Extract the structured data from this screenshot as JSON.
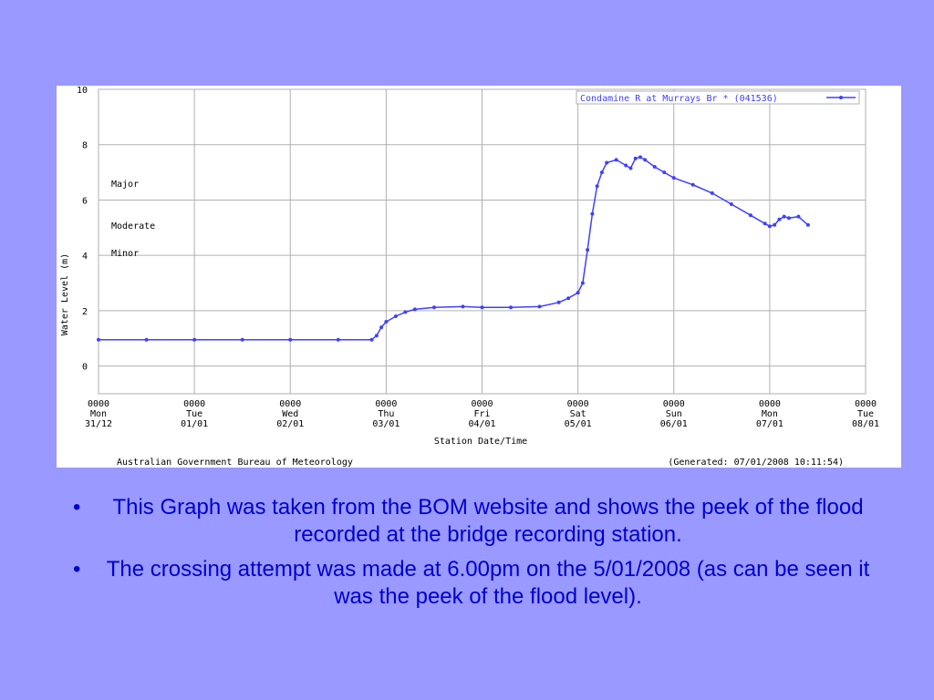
{
  "colors": {
    "background": "#9999ff",
    "panel": "#ffffff",
    "grid": "#b0b0b0",
    "series": "#4040ff",
    "text": "#000000",
    "bullet_text": "#0000cc"
  },
  "chart_data": {
    "type": "line",
    "ylabel": "Water Level (m)",
    "xlabel": "Station Date/Time",
    "ylim": [
      -1,
      10
    ],
    "y_ticks": [
      "10",
      "8",
      "6",
      "4",
      "2",
      "0"
    ],
    "y_tick_values": [
      10,
      8,
      6,
      4,
      2,
      0
    ],
    "x_ticks": [
      {
        "time": "0000",
        "day": "Mon",
        "date": "31/12"
      },
      {
        "time": "0000",
        "day": "Tue",
        "date": "01/01"
      },
      {
        "time": "0000",
        "day": "Wed",
        "date": "02/01"
      },
      {
        "time": "0000",
        "day": "Thu",
        "date": "03/01"
      },
      {
        "time": "0000",
        "day": "Fri",
        "date": "04/01"
      },
      {
        "time": "0000",
        "day": "Sat",
        "date": "05/01"
      },
      {
        "time": "0000",
        "day": "Sun",
        "date": "06/01"
      },
      {
        "time": "0000",
        "day": "Mon",
        "date": "07/01"
      },
      {
        "time": "0000",
        "day": "Tue",
        "date": "08/01"
      }
    ],
    "grid": true,
    "flood_levels": [
      {
        "label": "Major",
        "value": 6.6
      },
      {
        "label": "Moderate",
        "value": 5.1
      },
      {
        "label": "Minor",
        "value": 4.1
      }
    ],
    "legend_position": "top-right",
    "series": [
      {
        "name": "Condamine R at Murrays Br * (041536)",
        "x": [
          0,
          0.5,
          1,
          1.5,
          2,
          2.5,
          2.85,
          2.9,
          2.95,
          3.0,
          3.1,
          3.2,
          3.3,
          3.5,
          3.8,
          4.0,
          4.3,
          4.6,
          4.8,
          4.9,
          5.0,
          5.05,
          5.1,
          5.15,
          5.2,
          5.25,
          5.3,
          5.4,
          5.5,
          5.55,
          5.6,
          5.65,
          5.7,
          5.8,
          5.9,
          6.0,
          6.2,
          6.4,
          6.6,
          6.8,
          6.95,
          7.0,
          7.05,
          7.1,
          7.15,
          7.2,
          7.3,
          7.4
        ],
        "y": [
          0.95,
          0.95,
          0.95,
          0.95,
          0.95,
          0.95,
          0.95,
          1.1,
          1.4,
          1.6,
          1.8,
          1.95,
          2.05,
          2.12,
          2.15,
          2.12,
          2.12,
          2.15,
          2.3,
          2.45,
          2.65,
          3.0,
          4.2,
          5.5,
          6.5,
          7.0,
          7.35,
          7.45,
          7.25,
          7.15,
          7.5,
          7.55,
          7.45,
          7.2,
          7.0,
          6.8,
          6.55,
          6.25,
          5.85,
          5.45,
          5.15,
          5.05,
          5.1,
          5.3,
          5.4,
          5.35,
          5.4,
          5.1
        ]
      }
    ],
    "footer_left": "Australian Government Bureau of Meteorology",
    "footer_right": "(Generated: 07/01/2008 10:11:54)"
  },
  "bullets": [
    "This Graph was taken from the BOM website and shows the peek of the flood recorded at the bridge recording station.",
    "The crossing attempt was made at 6.00pm on the 5/01/2008 (as can be seen it was the peek of the flood level)."
  ],
  "bullet_mark": "•"
}
